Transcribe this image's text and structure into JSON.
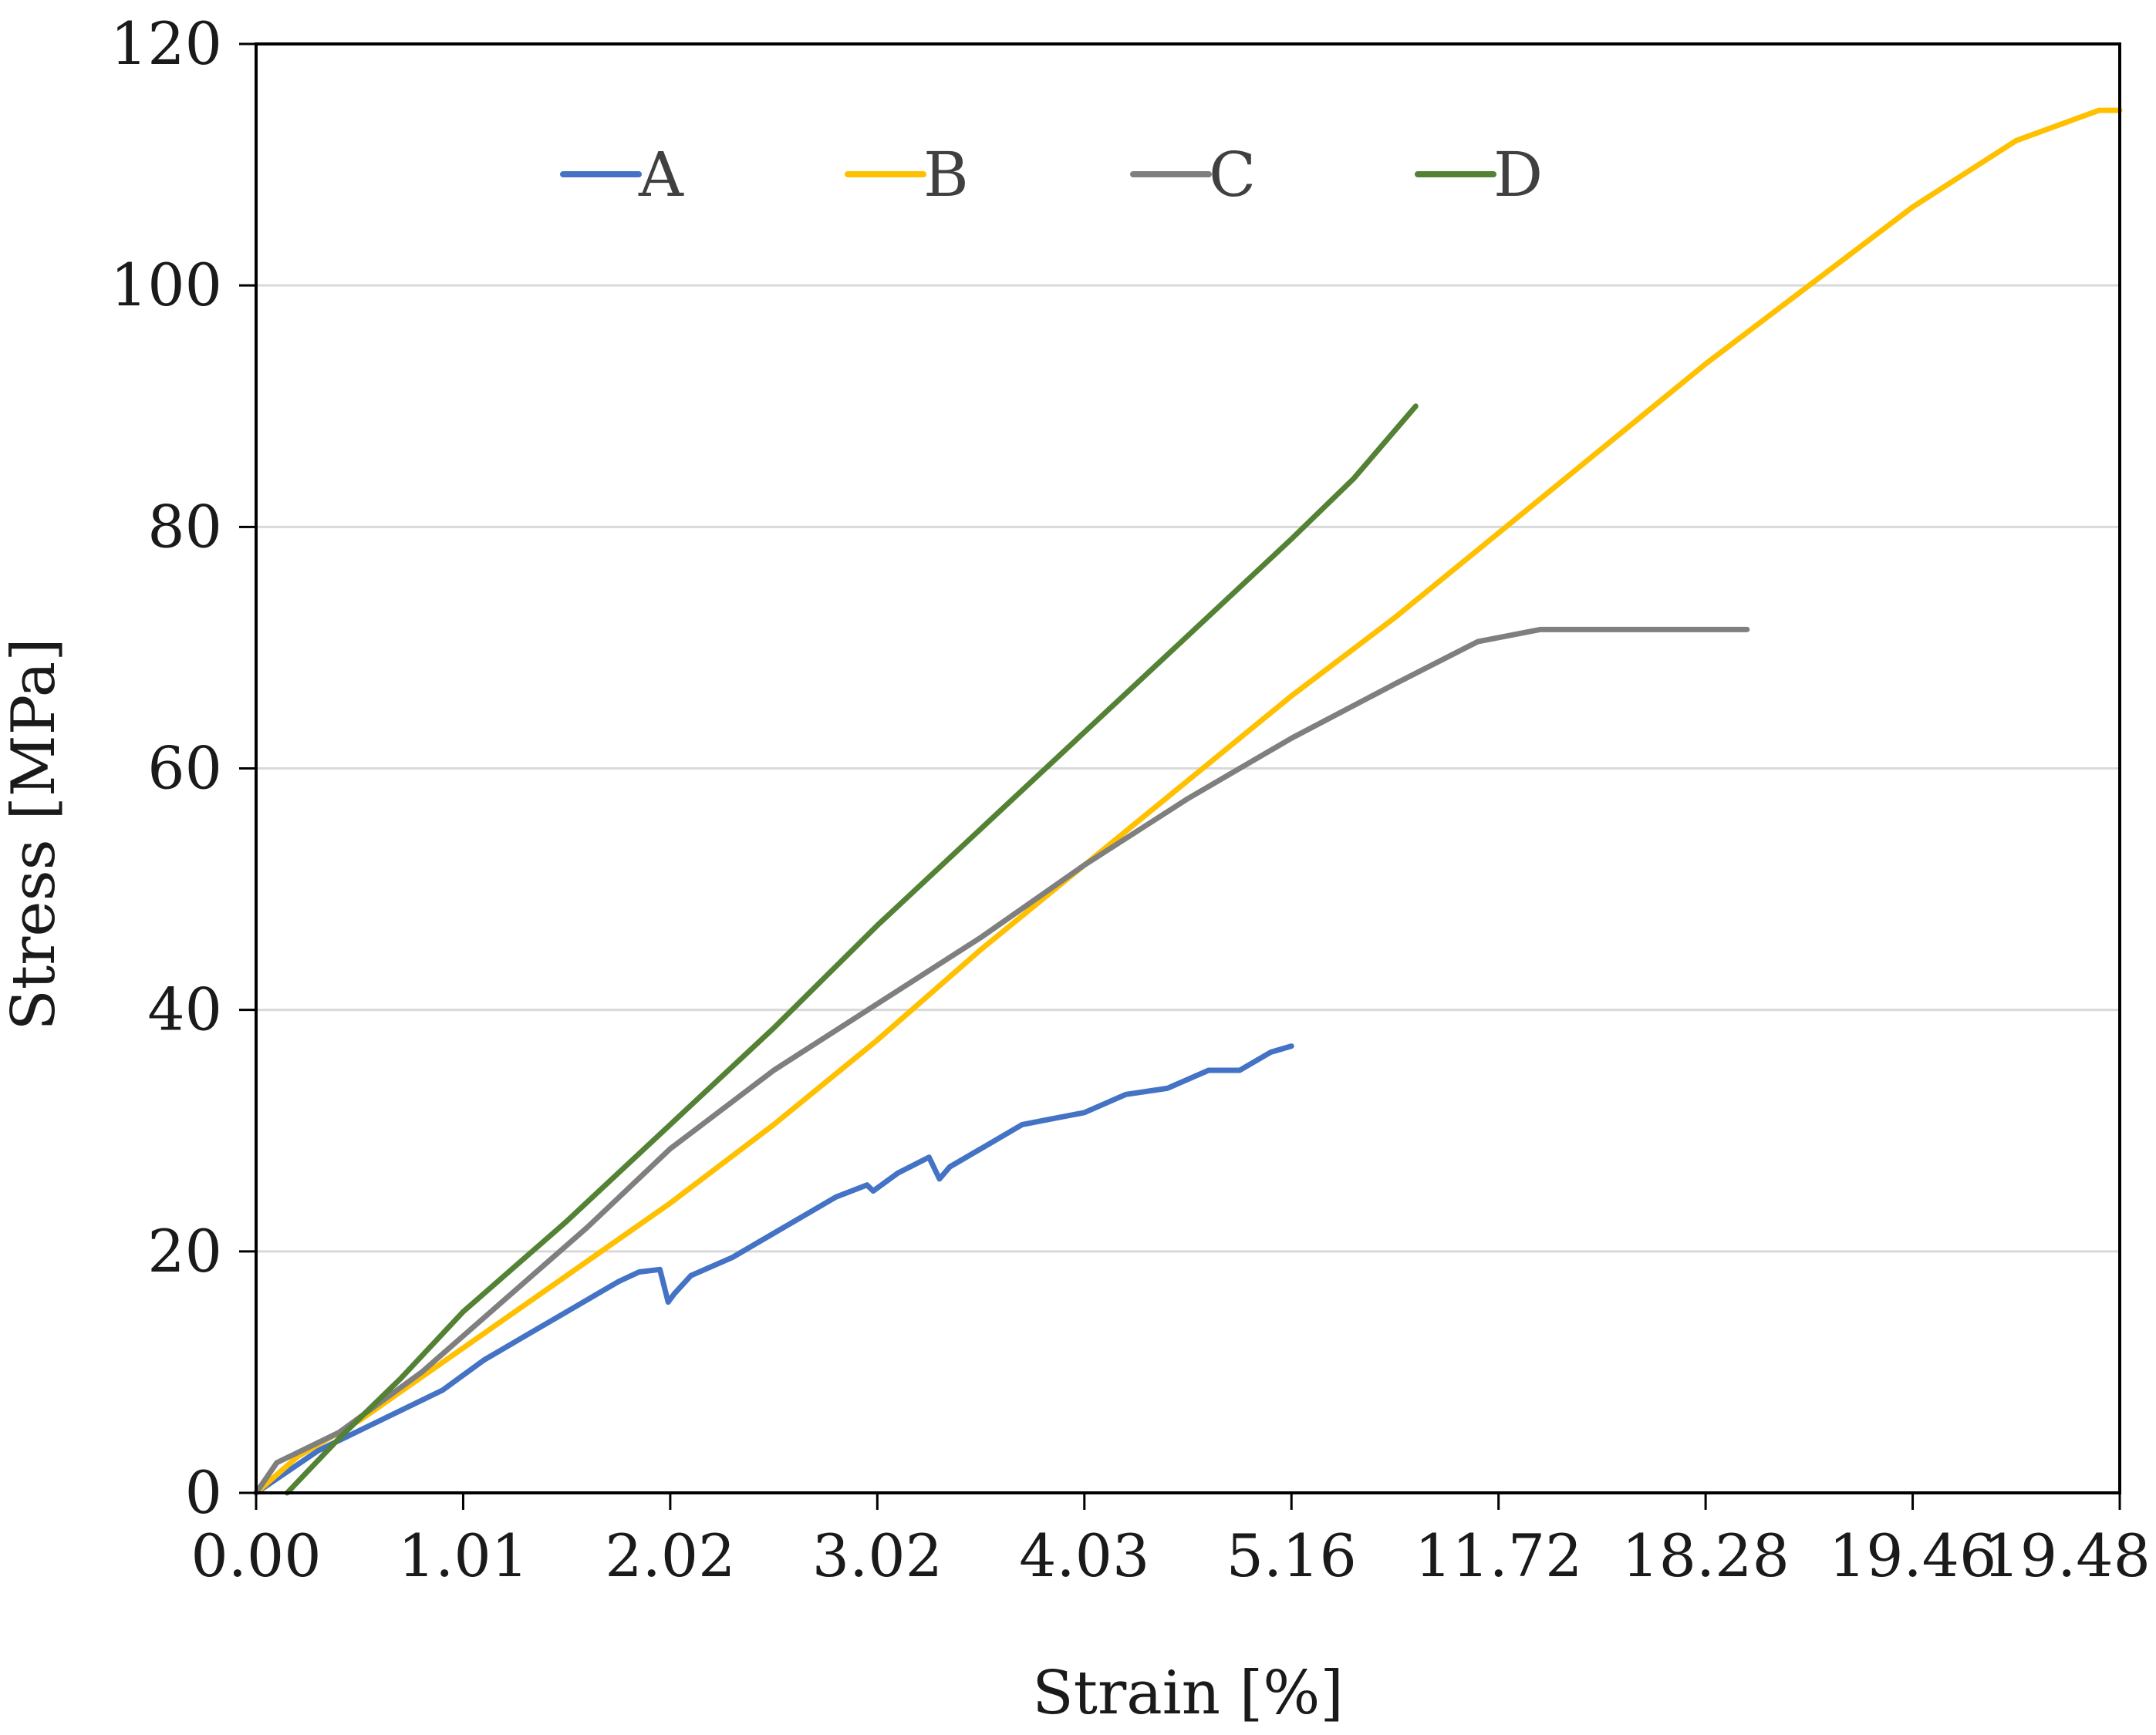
{
  "chart_data": {
    "type": "line",
    "xlabel": "Strain [%]",
    "ylabel": "Stress [MPa]",
    "ylim": [
      0,
      120
    ],
    "yticks": [
      0,
      20,
      40,
      60,
      80,
      100,
      120
    ],
    "xticks": [
      "0.00",
      "1.01",
      "2.02",
      "3.02",
      "4.03",
      "5.16",
      "11.72",
      "18.28",
      "19.46",
      "19.48"
    ],
    "x_axis_note": "tick labels are non-uniform; x positions below are expressed in tick-index units (0 = first tick, 9 = last tick)",
    "grid": "horizontal",
    "legend_position": "top",
    "series": [
      {
        "name": "A",
        "color": "#4472C4",
        "x": [
          0,
          0.3,
          0.6,
          0.9,
          1.1,
          1.3,
          1.5,
          1.6,
          1.75,
          1.85,
          1.95,
          1.99,
          2.02,
          2.1,
          2.3,
          2.5,
          2.8,
          2.95,
          2.98,
          3.1,
          3.25,
          3.3,
          3.35,
          3.5,
          3.7,
          3.85,
          4.0,
          4.2,
          4.4,
          4.6,
          4.75,
          4.9,
          5.0
        ],
        "y": [
          0,
          3.5,
          6,
          8.5,
          11,
          13,
          15,
          16,
          17.5,
          18.3,
          18.5,
          15.8,
          16.5,
          18,
          19.5,
          21.5,
          24.5,
          25.5,
          25,
          26.5,
          27.8,
          26,
          27,
          28.5,
          30.5,
          31,
          31.5,
          33,
          33.5,
          35,
          35,
          36.5,
          37
        ]
      },
      {
        "name": "B",
        "color": "#FFC000",
        "x": [
          0,
          0.2,
          0.5,
          1.0,
          1.5,
          2.0,
          2.5,
          3.0,
          3.5,
          4.0,
          4.5,
          5.0,
          5.5,
          6.0,
          6.5,
          7.0,
          7.5,
          8.0,
          8.5,
          8.9,
          9.0
        ],
        "y": [
          0,
          3,
          6,
          12,
          18,
          24,
          30.5,
          37.5,
          45,
          52,
          59,
          66,
          72.5,
          79.5,
          86.5,
          93.5,
          100,
          106.5,
          112,
          114.5,
          114.5
        ]
      },
      {
        "name": "C",
        "color": "#7F7F7F",
        "x": [
          0,
          0.1,
          0.4,
          0.8,
          1.2,
          1.6,
          2.0,
          2.5,
          3.0,
          3.5,
          4.0,
          4.5,
          5.0,
          5.5,
          5.9,
          6.2,
          6.5,
          7.0,
          7.2
        ],
        "y": [
          0,
          2.5,
          5,
          10,
          16,
          22,
          28.5,
          35,
          40.5,
          46,
          52,
          57.5,
          62.5,
          67,
          70.5,
          71.5,
          71.5,
          71.5,
          71.5
        ]
      },
      {
        "name": "D",
        "color": "#548235",
        "x": [
          0.15,
          0.4,
          0.7,
          1.0,
          1.5,
          2.0,
          2.5,
          3.0,
          3.5,
          4.0,
          4.5,
          5.0,
          5.3,
          5.6
        ],
        "y": [
          0,
          4.5,
          9.5,
          15,
          22.5,
          30.5,
          38.5,
          47,
          55,
          63,
          71,
          79,
          84,
          90
        ]
      }
    ]
  }
}
